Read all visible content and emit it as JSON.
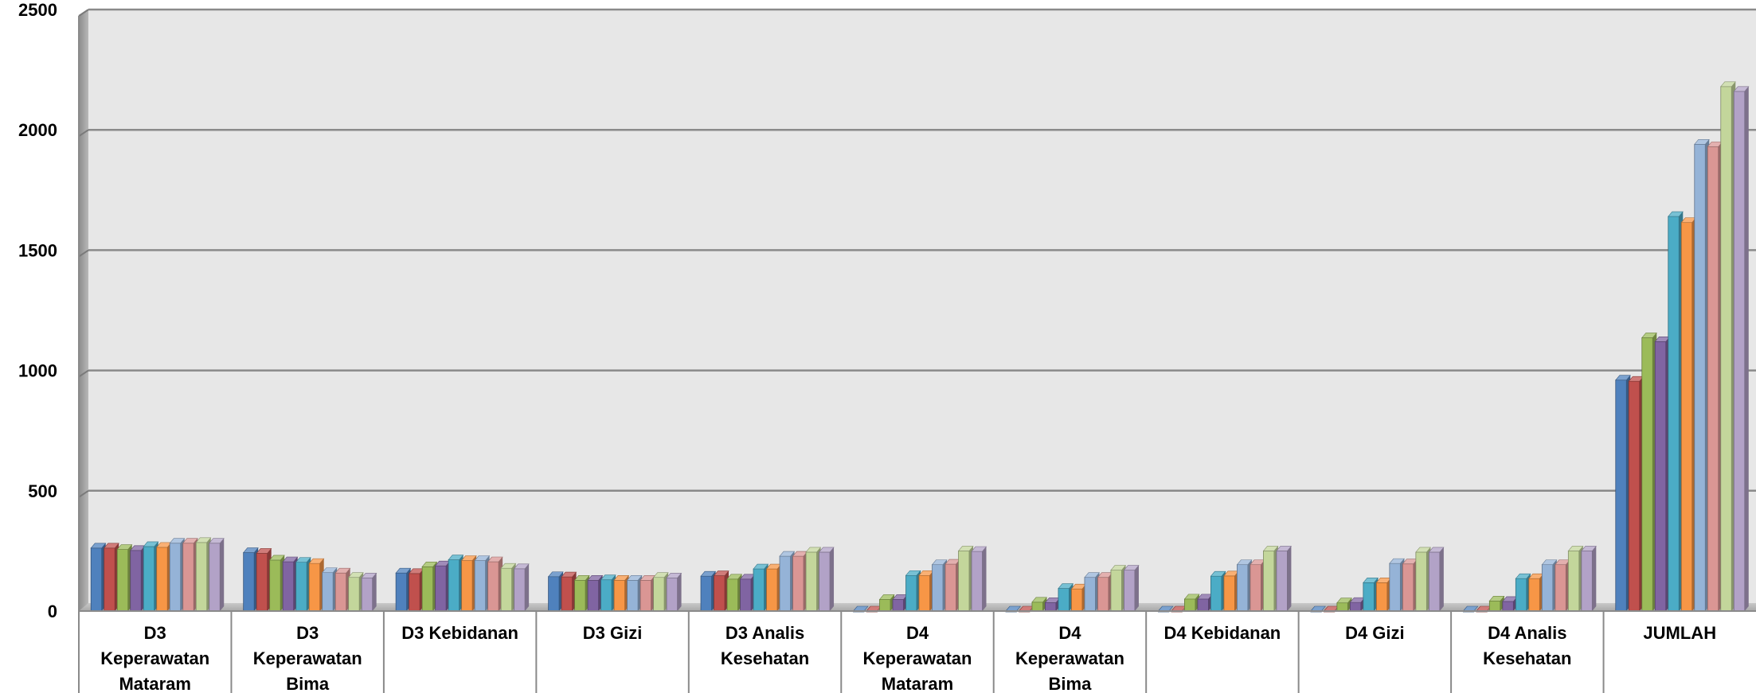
{
  "chart_data": {
    "type": "bar",
    "ylim": [
      0,
      2500
    ],
    "yticks": [
      "0",
      "500",
      "1000",
      "1500",
      "2000",
      "2500"
    ],
    "grid": true,
    "categories": [
      [
        "D3",
        "Keperawatan",
        "Mataram"
      ],
      [
        "D3",
        "Keperawatan",
        "Bima"
      ],
      [
        "D3 Kebidanan"
      ],
      [
        "D3 Gizi"
      ],
      [
        "D3 Analis",
        "Kesehatan"
      ],
      [
        "D4",
        "Keperawatan",
        "Mataram"
      ],
      [
        "D4",
        "Keperawatan",
        "Bima"
      ],
      [
        "D4 Kebidanan"
      ],
      [
        "D4 Gizi"
      ],
      [
        "D4 Analis",
        "Kesehatan"
      ],
      [
        "JUMLAH"
      ]
    ],
    "series": [
      {
        "color": "#4f81bd",
        "values": [
          262,
          243,
          158,
          143,
          145,
          0,
          0,
          0,
          0,
          0,
          960
        ]
      },
      {
        "color": "#c0504d",
        "values": [
          262,
          240,
          156,
          142,
          147,
          0,
          0,
          0,
          0,
          0,
          955
        ]
      },
      {
        "color": "#9bbb59",
        "values": [
          256,
          212,
          184,
          128,
          133,
          48,
          37,
          50,
          34,
          42,
          1136
        ]
      },
      {
        "color": "#8064a2",
        "values": [
          252,
          205,
          188,
          128,
          133,
          48,
          35,
          50,
          36,
          40,
          1120
        ]
      },
      {
        "color": "#4bacc6",
        "values": [
          268,
          203,
          213,
          130,
          175,
          148,
          94,
          145,
          118,
          135,
          1640
        ]
      },
      {
        "color": "#f79646",
        "values": [
          265,
          198,
          210,
          128,
          175,
          148,
          92,
          146,
          118,
          135,
          1615
        ]
      },
      {
        "color": "#95b3d7",
        "values": [
          282,
          160,
          210,
          128,
          228,
          193,
          140,
          193,
          198,
          193,
          1940
        ]
      },
      {
        "color": "#da9694",
        "values": [
          282,
          158,
          205,
          128,
          228,
          195,
          140,
          193,
          196,
          193,
          1930
        ]
      },
      {
        "color": "#c3d69b",
        "values": [
          285,
          140,
          178,
          140,
          245,
          250,
          170,
          250,
          245,
          250,
          2180
        ]
      },
      {
        "color": "#b2a2c7",
        "values": [
          282,
          138,
          176,
          138,
          245,
          248,
          170,
          250,
          245,
          250,
          2160
        ]
      }
    ]
  }
}
